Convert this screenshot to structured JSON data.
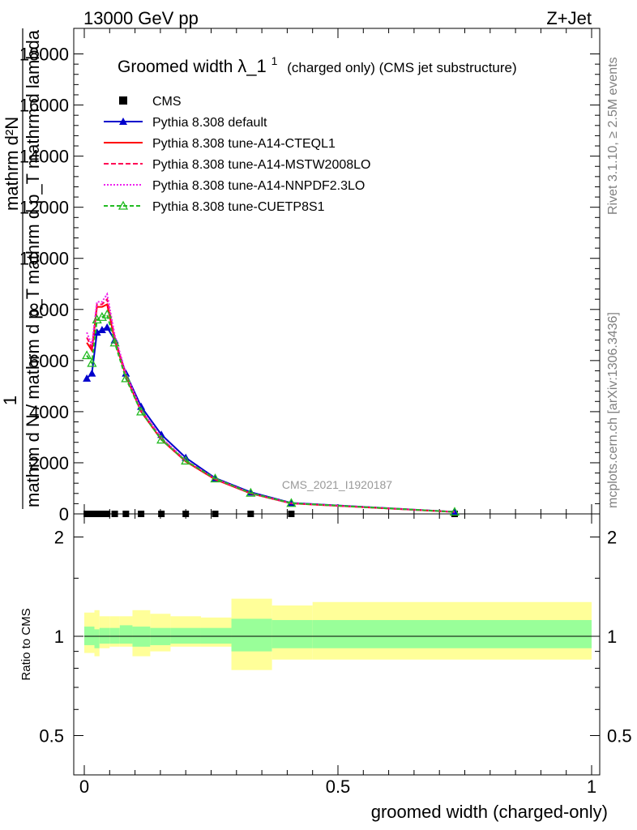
{
  "header": {
    "energy_label": "13000 GeV pp",
    "process_label": "Z+Jet"
  },
  "side_labels": {
    "rivet": "Rivet 3.1.10, ≥ 2.5M events",
    "mcplots": "mcplots.cern.ch [arXiv:1306.3436]"
  },
  "chart_data": [
    {
      "type": "line",
      "title": "Groomed width λ_1¹ (charged only) (CMS jet substructure)",
      "title_main": "Groomed width",
      "title_symbol": "λ_1",
      "title_sup": "1",
      "title_rest": "(charged only) (CMS jet substructure)",
      "ylabel_num": "mathrm d N",
      "ylabel_denom_line1": "mathrm d p_T mathrm d lambda",
      "ylabel_denom_line2": "mathrm d N / mathrm d p_T",
      "ylabel_one": "1",
      "ylabel_rest": "mathrm d²N",
      "xlim": [
        0,
        1
      ],
      "ylim": [
        0,
        19000
      ],
      "yticks": [
        0,
        2000,
        4000,
        6000,
        8000,
        10000,
        12000,
        14000,
        16000,
        18000
      ],
      "ytick_labels": [
        "0",
        "2000",
        "4000",
        "6000",
        "8000",
        "10000",
        "12000",
        "14000",
        "16000",
        "18000"
      ],
      "watermark": "CMS_2021_I1920187",
      "legend_position": "top-left",
      "series": [
        {
          "name": "CMS",
          "color": "#000000",
          "marker": "square",
          "x": [
            0.005,
            0.015,
            0.025,
            0.035,
            0.045,
            0.06,
            0.082,
            0.112,
            0.152,
            0.2,
            0.258,
            0.328,
            0.408,
            0.73
          ],
          "y": [
            0,
            0,
            0,
            0,
            0,
            0,
            0,
            0,
            0,
            0,
            0,
            0,
            0,
            0
          ]
        },
        {
          "name": "Pythia 8.308 default",
          "color": "#0000cc",
          "marker": "triangle",
          "x": [
            0.005,
            0.015,
            0.025,
            0.035,
            0.045,
            0.06,
            0.082,
            0.112,
            0.152,
            0.2,
            0.258,
            0.328,
            0.408,
            0.73
          ],
          "y": [
            5300,
            5500,
            7100,
            7200,
            7300,
            6800,
            5500,
            4200,
            3100,
            2200,
            1400,
            850,
            430,
            80
          ]
        },
        {
          "name": "Pythia 8.308 tune-A14-CTEQL1",
          "color": "#ff0000",
          "marker": "none",
          "x": [
            0.005,
            0.015,
            0.025,
            0.035,
            0.045,
            0.06,
            0.082,
            0.112,
            0.152,
            0.2,
            0.258,
            0.328,
            0.408,
            0.73
          ],
          "y": [
            6700,
            6400,
            8100,
            8100,
            8200,
            6800,
            5400,
            4000,
            2900,
            2050,
            1350,
            800,
            410,
            75
          ]
        },
        {
          "name": "Pythia 8.308 tune-A14-MSTW2008LO",
          "color": "#ff0055",
          "marker": "none",
          "x": [
            0.005,
            0.015,
            0.025,
            0.035,
            0.045,
            0.06,
            0.082,
            0.112,
            0.152,
            0.2,
            0.258,
            0.328,
            0.408,
            0.73
          ],
          "y": [
            6900,
            6500,
            8200,
            8200,
            8400,
            6900,
            5450,
            4050,
            2950,
            2080,
            1370,
            810,
            415,
            76
          ]
        },
        {
          "name": "Pythia 8.308 tune-A14-NNPDF2.3LO",
          "color": "#ee22ee",
          "marker": "none",
          "x": [
            0.005,
            0.015,
            0.025,
            0.035,
            0.045,
            0.06,
            0.082,
            0.112,
            0.152,
            0.2,
            0.258,
            0.328,
            0.408,
            0.73
          ],
          "y": [
            7100,
            6600,
            8300,
            8300,
            8600,
            7000,
            5500,
            4080,
            2980,
            2090,
            1380,
            815,
            418,
            77
          ]
        },
        {
          "name": "Pythia 8.308 tune-CUETP8S1",
          "color": "#22bb22",
          "marker": "open-triangle",
          "x": [
            0.005,
            0.015,
            0.025,
            0.035,
            0.045,
            0.06,
            0.082,
            0.112,
            0.152,
            0.2,
            0.258,
            0.328,
            0.408,
            0.73
          ],
          "y": [
            6200,
            5900,
            7600,
            7700,
            7800,
            6700,
            5300,
            4000,
            2900,
            2080,
            1380,
            820,
            420,
            78
          ]
        }
      ]
    },
    {
      "type": "area",
      "ylabel": "Ratio to CMS",
      "xlabel": "groomed width (charged-only)",
      "xlim": [
        0,
        1
      ],
      "ylim": [
        0.38,
        2.35
      ],
      "log_y": true,
      "xticks": [
        0,
        0.5,
        1
      ],
      "xtick_labels": [
        "0",
        "0.5",
        "1"
      ],
      "yticks": [
        0.5,
        1,
        2
      ],
      "ytick_labels": [
        "0.5",
        "1",
        "2"
      ],
      "reference_line": 1,
      "bands": {
        "bin_edges": [
          0,
          0.02,
          0.03,
          0.05,
          0.07,
          0.095,
          0.13,
          0.17,
          0.23,
          0.29,
          0.37,
          0.45,
          1.0
        ],
        "inner_low": [
          0.94,
          0.92,
          0.95,
          0.95,
          0.95,
          0.93,
          0.94,
          0.95,
          0.95,
          0.9,
          0.92,
          0.92
        ],
        "inner_high": [
          1.07,
          1.05,
          1.06,
          1.06,
          1.08,
          1.07,
          1.06,
          1.06,
          1.06,
          1.13,
          1.12,
          1.12
        ],
        "outer_low": [
          0.89,
          0.87,
          0.92,
          0.93,
          0.93,
          0.87,
          0.9,
          0.93,
          0.93,
          0.79,
          0.85,
          0.85
        ],
        "outer_high": [
          1.18,
          1.2,
          1.15,
          1.15,
          1.15,
          1.2,
          1.17,
          1.15,
          1.14,
          1.3,
          1.24,
          1.27
        ],
        "inner_color": "#99ff99",
        "outer_color": "#ffff99"
      }
    }
  ]
}
